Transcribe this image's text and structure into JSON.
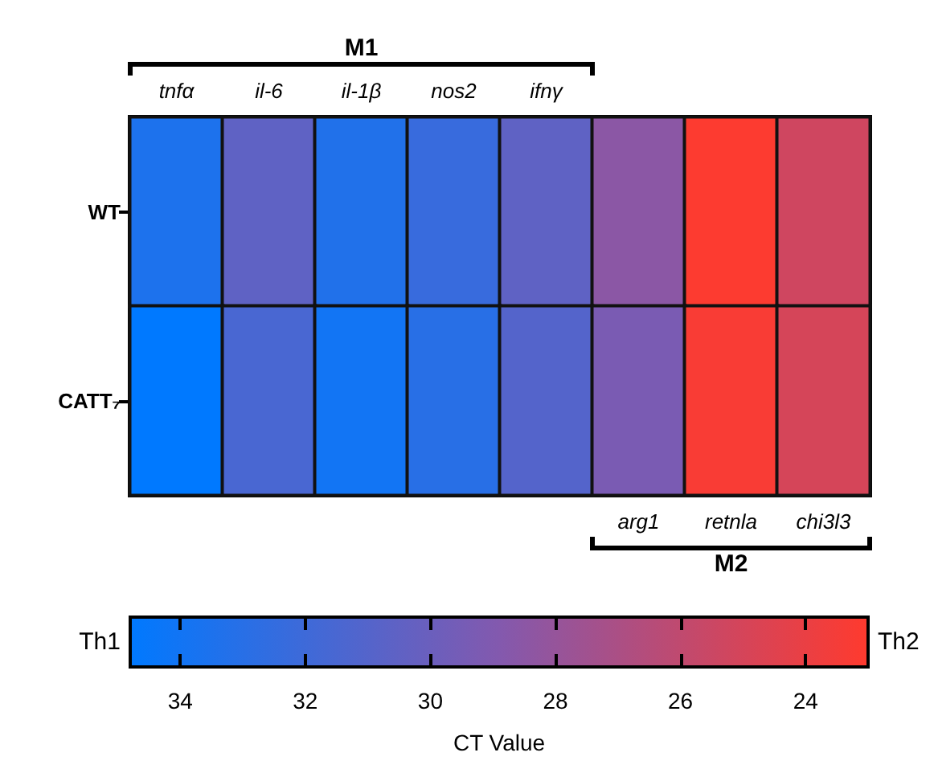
{
  "chart_data": {
    "type": "heatmap",
    "categories": [
      "tnfα",
      "il-6",
      "il-1β",
      "nos2",
      "ifnγ",
      "arg1",
      "retnla",
      "chi3l3"
    ],
    "y_categories": [
      "WT",
      "CATT₇"
    ],
    "cells": [
      [
        33.5,
        30.5,
        33.3,
        32.3,
        30.5,
        28.5,
        23.1,
        25.3
      ],
      [
        34.8,
        31.5,
        34.0,
        33.0,
        31.0,
        29.3,
        23.3,
        25.0
      ]
    ],
    "clim": [
      34.8,
      23.0
    ],
    "cticks": [
      34,
      32,
      30,
      28,
      26,
      24
    ],
    "clabel": "CT Value",
    "annotations": [
      "M1",
      "M2",
      "Th1",
      "Th2"
    ]
  }
}
